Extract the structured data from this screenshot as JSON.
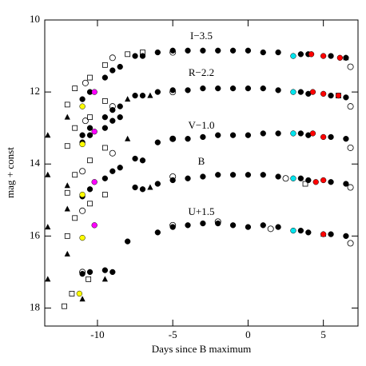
{
  "chart_data": {
    "type": "scatter",
    "xlabel": "Days since B maximum",
    "ylabel": "mag + const",
    "xlim": [
      -13.5,
      7.3
    ],
    "ylim": [
      18.5,
      10
    ],
    "y_inverted": true,
    "xticks": [
      -10,
      -5,
      0,
      5
    ],
    "yticks": [
      10,
      12,
      14,
      16,
      18
    ],
    "annotations": [
      "I−3.5",
      "R−2.2",
      "V−1.0",
      "B",
      "U+1.5"
    ],
    "series": [
      {
        "marker": "filled-circle",
        "color": "#000000",
        "x": [
          -11,
          -10.5,
          -9.5,
          -9,
          -8.5,
          -7.5,
          -7,
          -6,
          -5,
          -4,
          -3,
          -2,
          -1,
          0,
          1,
          2,
          3.5,
          4,
          5.5,
          6.5
        ],
        "y": [
          12.2,
          12.0,
          11.6,
          11.4,
          11.3,
          11.0,
          11.0,
          10.9,
          10.85,
          10.85,
          10.85,
          10.85,
          10.85,
          10.85,
          10.9,
          10.9,
          10.95,
          10.95,
          11.0,
          11.05
        ]
      },
      {
        "marker": "filled-circle",
        "color": "#000000",
        "x": [
          -11,
          -10.5,
          -9.5,
          -9,
          -8.5,
          -7.5,
          -7,
          -6,
          -5,
          -4,
          -3,
          -2,
          -1,
          0,
          1,
          2,
          3.5,
          4,
          5.5,
          6.5
        ],
        "y": [
          13.2,
          13.0,
          12.7,
          12.5,
          12.4,
          12.1,
          12.1,
          12.0,
          11.95,
          11.95,
          11.9,
          11.9,
          11.9,
          11.9,
          11.9,
          11.95,
          12.0,
          12.05,
          12.1,
          12.15
        ]
      },
      {
        "marker": "filled-circle",
        "color": "#000000",
        "x": [
          -11,
          -10.5,
          -9.5,
          -9,
          -8.5,
          -7.5,
          -7,
          -6,
          -5,
          -4,
          -3,
          -2,
          -1,
          0,
          1,
          2,
          3.5,
          4,
          5.5,
          6.5
        ],
        "y": [
          13.4,
          13.2,
          13.0,
          12.8,
          12.7,
          13.85,
          13.9,
          13.4,
          13.3,
          13.3,
          13.25,
          13.2,
          13.2,
          13.2,
          13.15,
          13.15,
          13.15,
          13.2,
          13.25,
          13.3
        ]
      },
      {
        "marker": "filled-circle",
        "color": "#000000",
        "x": [
          -11,
          -10.5,
          -9.5,
          -9,
          -8.5,
          -7.5,
          -7,
          -6,
          -5,
          -4,
          -3,
          -2,
          -1,
          0,
          1,
          2,
          3.5,
          4,
          5.5,
          6.5
        ],
        "y": [
          14.9,
          14.7,
          14.4,
          14.2,
          14.1,
          14.65,
          14.7,
          14.55,
          14.45,
          14.4,
          14.35,
          14.3,
          14.3,
          14.3,
          14.3,
          14.35,
          14.4,
          14.45,
          14.5,
          14.55
        ]
      },
      {
        "marker": "filled-circle",
        "color": "#000000",
        "x": [
          -11,
          -10.5,
          -9.5,
          -9,
          -8,
          -6,
          -5,
          -4,
          -3,
          -2,
          -1,
          0,
          1,
          2,
          3.5,
          4,
          5.5,
          6.5
        ],
        "y": [
          17.05,
          17.0,
          16.95,
          17.0,
          16.15,
          15.9,
          15.75,
          15.7,
          15.65,
          15.65,
          15.7,
          15.75,
          15.7,
          15.75,
          15.85,
          15.9,
          15.95,
          16.0
        ]
      },
      {
        "marker": "open-circle",
        "color": "#000000",
        "x": [
          -9,
          -9,
          -9,
          -10.8,
          -10.8,
          -11,
          -11,
          -11,
          -5,
          -5,
          -5,
          -5,
          -5,
          6.8,
          6.8,
          6.8,
          6.8,
          6.8,
          -2,
          1.5,
          2.5
        ],
        "y": [
          11.05,
          12.4,
          13.7,
          11.75,
          12.8,
          14.2,
          15.3,
          17.0,
          10.9,
          12.0,
          13.3,
          14.35,
          15.7,
          11.3,
          12.4,
          13.55,
          14.65,
          16.2,
          15.6,
          15.8,
          14.4
        ]
      },
      {
        "marker": "open-square",
        "color": "#000000",
        "x": [
          -12,
          -11.5,
          -10.5,
          -9.5,
          -8,
          -7,
          -12,
          -11.5,
          -10.5,
          -9.5,
          -12,
          -11.5,
          -10.5,
          -9.5,
          -12,
          -11.5,
          -10.5,
          -9.5,
          -12.2,
          -11.7,
          -10.6,
          3.8,
          6
        ],
        "y": [
          12.35,
          11.9,
          11.6,
          11.25,
          10.95,
          10.9,
          13.5,
          13.0,
          12.7,
          12.25,
          14.8,
          14.3,
          13.9,
          13.55,
          16.0,
          15.5,
          15.1,
          14.85,
          17.95,
          17.6,
          17.2,
          14.55,
          12.1
        ]
      },
      {
        "marker": "filled-triangle",
        "color": "#000000",
        "x": [
          -13.3,
          -13.3,
          -13.3,
          -13.3,
          -12,
          -12,
          -12,
          -12,
          -11,
          -9.5,
          -8,
          -8,
          -6.5,
          -6.5,
          5,
          6.5
        ],
        "y": [
          13.2,
          14.3,
          15.75,
          17.2,
          12.7,
          14.6,
          15.25,
          16.5,
          17.75,
          17.2,
          12.2,
          13.3,
          14.65,
          12.1,
          15.95,
          11.05
        ]
      },
      {
        "marker": "filled-circle",
        "color": "#ffff00",
        "x": [
          -11,
          -11,
          -11,
          -11,
          -11.2
        ],
        "y": [
          12.4,
          13.45,
          14.85,
          16.05,
          17.6
        ]
      },
      {
        "marker": "filled-circle",
        "color": "#ff00ff",
        "x": [
          -10.2,
          -10.2,
          -10.2,
          -10.2
        ],
        "y": [
          12.0,
          13.1,
          14.5,
          15.7
        ]
      },
      {
        "marker": "filled-circle",
        "color": "#00e5ee",
        "x": [
          3,
          3,
          3,
          3,
          3
        ],
        "y": [
          11.0,
          12.0,
          13.15,
          14.4,
          15.85
        ]
      },
      {
        "marker": "filled-circle",
        "color": "#ff0000",
        "x": [
          4.2,
          5,
          6.1,
          4.3,
          5,
          6,
          4.3,
          5,
          4.5,
          5,
          5
        ],
        "y": [
          10.95,
          11.0,
          11.05,
          12.0,
          12.05,
          12.1,
          13.15,
          13.25,
          14.5,
          14.45,
          15.95
        ]
      }
    ]
  }
}
